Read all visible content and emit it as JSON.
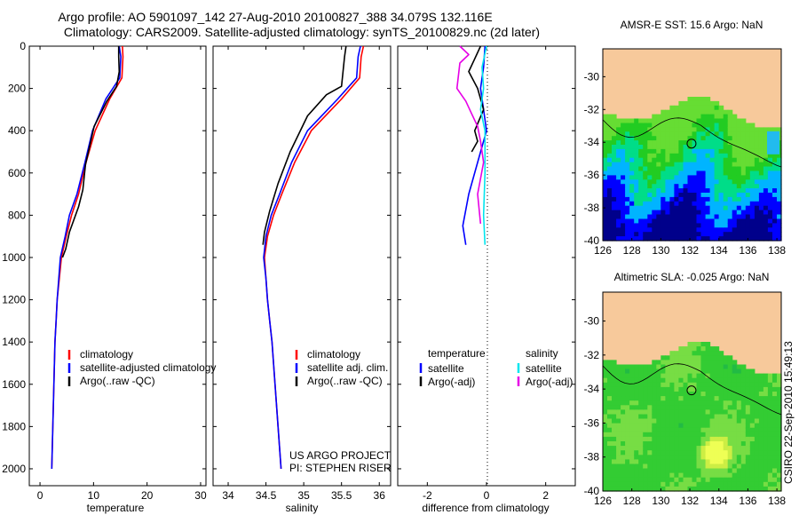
{
  "header": {
    "line1": "Argo profile: AO 5901097_142 27-Aug-2010 20100827_388 34.079S 132.116E",
    "line2": "Climatology: CARS2009. Satellite-adjusted climatology: synTS_20100829.nc (2d later)"
  },
  "colors": {
    "climatology": "#ff0000",
    "satellite": "#0000ff",
    "argo": "#000000",
    "satellite_salinity": "#00e5ee",
    "argo_salinity": "#e600e6",
    "land": "#f7c99b"
  },
  "chart_data": [
    {
      "id": "temperature",
      "type": "line",
      "xlabel": "temperature",
      "ylabel": "",
      "xlim": [
        -2,
        31
      ],
      "ylim": [
        2080,
        0
      ],
      "x_ticks": [
        0,
        10,
        20,
        30
      ],
      "y_ticks": [
        0,
        200,
        400,
        600,
        800,
        1000,
        1200,
        1400,
        1600,
        1800,
        2000
      ],
      "y_reversed": true,
      "legend": {
        "placement": "lower-center",
        "entries": [
          "climatology",
          "satellite-adjusted climatology",
          "Argo(..raw -QC)"
        ]
      },
      "series": [
        {
          "name": "climatology",
          "color": "#ff0000",
          "x": [
            15.4,
            15.5,
            15.3,
            13,
            10.3,
            8.6,
            7.2,
            5.9,
            4.9,
            4.0,
            3.6,
            3.2,
            3.0,
            2.8,
            2.7,
            2.6,
            2.5,
            2.4,
            2.3,
            2.2
          ],
          "y": [
            0,
            50,
            150,
            250,
            400,
            550,
            700,
            800,
            900,
            1000,
            1100,
            1200,
            1300,
            1400,
            1500,
            1600,
            1700,
            1800,
            1900,
            2000
          ]
        },
        {
          "name": "satellite-adjusted climatology",
          "color": "#0000ff",
          "x": [
            14.8,
            15.1,
            14.9,
            12.3,
            9.8,
            8.4,
            6.9,
            5.5,
            4.7,
            3.8,
            3.5,
            3.2,
            3.0,
            2.8,
            2.7,
            2.6,
            2.5,
            2.4,
            2.3,
            2.2
          ],
          "y": [
            0,
            50,
            150,
            250,
            400,
            550,
            700,
            800,
            900,
            1000,
            1100,
            1200,
            1300,
            1400,
            1500,
            1600,
            1700,
            1800,
            1900,
            2000
          ]
        },
        {
          "name": "Argo(..raw -QC)",
          "color": "#000000",
          "x": [
            14.7,
            14.7,
            14.8,
            14.3,
            12.5,
            10.1,
            8.5,
            8.0,
            7.2,
            5.5,
            4.8,
            4.2
          ],
          "y": [
            0,
            50,
            120,
            190,
            260,
            380,
            560,
            680,
            760,
            880,
            960,
            1000
          ]
        }
      ]
    },
    {
      "id": "salinity",
      "type": "line",
      "xlabel": "salinity",
      "ylabel": "",
      "xlim": [
        33.8,
        36.15
      ],
      "ylim": [
        2080,
        0
      ],
      "x_ticks": [
        34,
        34.5,
        35,
        35.5,
        36
      ],
      "y_reversed": true,
      "legend": {
        "placement": "lower-center",
        "entries": [
          "climatology",
          "satellite adj. clim.",
          "Argo(..raw -QC)"
        ]
      },
      "annotation": [
        "US ARGO PROJECT",
        "PI: STEPHEN RISER"
      ],
      "series": [
        {
          "name": "climatology",
          "color": "#ff0000",
          "x": [
            35.79,
            35.76,
            35.74,
            35.5,
            35.1,
            34.88,
            34.71,
            34.6,
            34.52,
            34.48,
            34.5,
            34.52,
            34.55,
            34.58,
            34.6,
            34.62,
            34.64,
            34.66,
            34.68,
            34.7
          ],
          "y": [
            0,
            50,
            150,
            250,
            400,
            550,
            700,
            800,
            900,
            1000,
            1100,
            1200,
            1300,
            1400,
            1500,
            1600,
            1700,
            1800,
            1900,
            2000
          ]
        },
        {
          "name": "satellite adj. clim.",
          "color": "#0000ff",
          "x": [
            35.75,
            35.72,
            35.7,
            35.45,
            35.05,
            34.84,
            34.68,
            34.57,
            34.5,
            34.47,
            34.5,
            34.52,
            34.55,
            34.58,
            34.6,
            34.62,
            34.64,
            34.66,
            34.68,
            34.7
          ],
          "y": [
            0,
            50,
            150,
            250,
            400,
            550,
            700,
            800,
            900,
            1000,
            1100,
            1200,
            1300,
            1400,
            1500,
            1600,
            1700,
            1800,
            1900,
            2000
          ]
        },
        {
          "name": "Argo(..raw -QC)",
          "color": "#000000",
          "x": [
            35.56,
            35.54,
            35.52,
            35.5,
            35.3,
            35.05,
            34.82,
            34.66,
            34.55,
            34.48,
            34.46
          ],
          "y": [
            0,
            50,
            120,
            190,
            230,
            330,
            500,
            650,
            780,
            880,
            940
          ]
        }
      ]
    },
    {
      "id": "difference",
      "type": "line",
      "xlabel": "difference from climatology",
      "ylabel": "",
      "xlim": [
        -3,
        3
      ],
      "ylim": [
        2080,
        0
      ],
      "x_ticks": [
        -2,
        0,
        2
      ],
      "y_reversed": true,
      "reference_line": {
        "x": 0,
        "style": "dotted"
      },
      "legend": {
        "placement": "lower-center",
        "columns": [
          {
            "header": "temperature",
            "entries": [
              "satellite",
              "Argo(-adj)"
            ]
          },
          {
            "header": "salinity",
            "entries": [
              "satellite",
              "Argo(-adj)"
            ]
          }
        ]
      },
      "series": [
        {
          "name": "temperature satellite",
          "color": "#0000ff",
          "x": [
            -0.05,
            -0.1,
            -0.2,
            -0.1,
            0.0,
            -0.3,
            -0.6,
            -0.8,
            -0.7
          ],
          "y": [
            0,
            100,
            200,
            300,
            400,
            550,
            700,
            850,
            940
          ]
        },
        {
          "name": "temperature Argo(-adj)",
          "color": "#000000",
          "x": [
            -0.2,
            -0.4,
            -0.6,
            -0.3,
            -0.1,
            -0.4,
            -0.3,
            -0.5
          ],
          "y": [
            0,
            60,
            120,
            200,
            300,
            400,
            450,
            500
          ]
        },
        {
          "name": "salinity satellite",
          "color": "#00e5ee",
          "x": [
            0.0,
            -0.15,
            -0.1,
            -0.2,
            -0.05,
            -0.05,
            -0.1,
            -0.05
          ],
          "y": [
            0,
            100,
            200,
            300,
            400,
            600,
            800,
            940
          ]
        },
        {
          "name": "salinity Argo(-adj)",
          "color": "#e600e6",
          "x": [
            -0.9,
            -0.6,
            -0.9,
            -1.0,
            -0.7,
            -0.5,
            -0.3,
            -0.2,
            -0.1,
            -0.3,
            -0.2
          ],
          "y": [
            0,
            40,
            80,
            200,
            260,
            320,
            380,
            450,
            550,
            700,
            840
          ]
        }
      ]
    },
    {
      "id": "sst_map",
      "type": "heatmap",
      "title": "AMSR-E SST: 15.6 Argo: NaN",
      "xlim": [
        126,
        138.3
      ],
      "ylim": [
        -40,
        -28.3
      ],
      "x_ticks": [
        126,
        128,
        130,
        132,
        134,
        136,
        138
      ],
      "y_ticks": [
        -30,
        -32,
        -34,
        -36,
        -38,
        -40
      ],
      "marker": {
        "lon": 132.116,
        "lat": -34.079
      },
      "colormap": [
        "#00008b",
        "#0000ff",
        "#00b4ff",
        "#00dd88",
        "#22cc22",
        "#66dd33"
      ]
    },
    {
      "id": "sla_map",
      "type": "heatmap",
      "title": "Altimetric SLA: -0.025 Argo: NaN",
      "xlim": [
        126,
        138.3
      ],
      "ylim": [
        -40,
        -28.3
      ],
      "x_ticks": [
        126,
        128,
        130,
        132,
        134,
        136,
        138
      ],
      "y_ticks": [
        -30,
        -32,
        -34,
        -36,
        -38,
        -40
      ],
      "marker": {
        "lon": 132.116,
        "lat": -34.079
      },
      "colormap": [
        "#22bb44",
        "#33cc33",
        "#77dd44",
        "#ccee44",
        "#eeff55"
      ]
    }
  ],
  "footer": {
    "stamp": "CSIRO 22-Sep-2010 15:49:13"
  }
}
